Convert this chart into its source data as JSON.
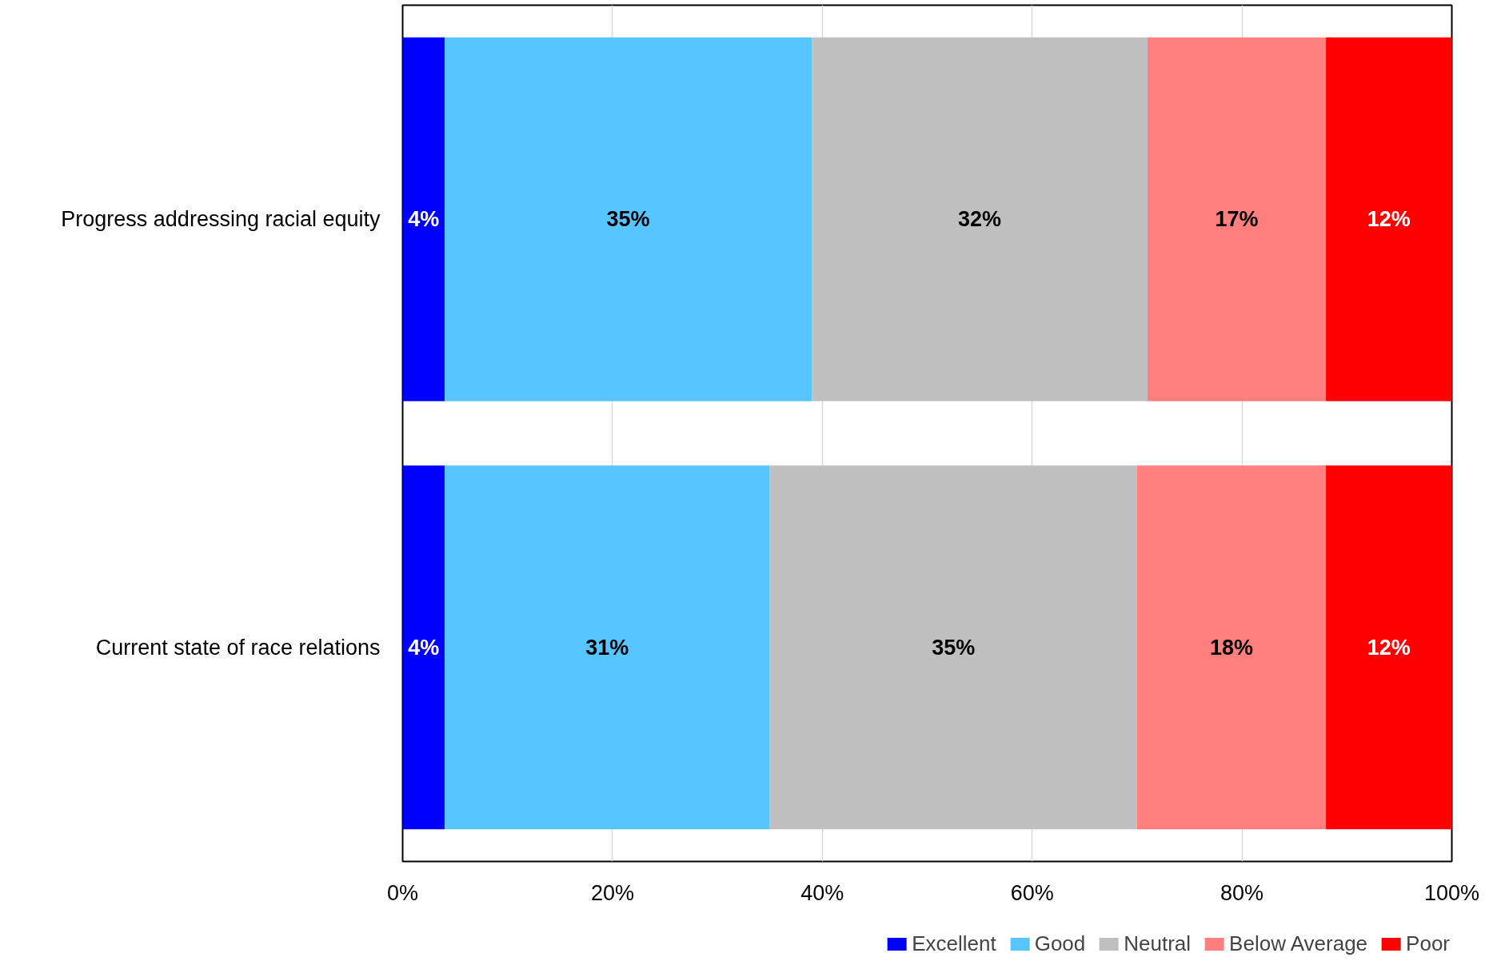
{
  "chart_data": {
    "type": "bar",
    "orientation": "horizontal",
    "stacked": true,
    "categories": [
      "Progress addressing racial equity",
      "Current state of race relations"
    ],
    "series": [
      {
        "name": "Excellent",
        "color": "#0000ff",
        "values": [
          4,
          4
        ],
        "value_labels": [
          "4%",
          "4%"
        ]
      },
      {
        "name": "Good",
        "color": "#57c5ff",
        "values": [
          35,
          31
        ],
        "value_labels": [
          "35%",
          "31%"
        ]
      },
      {
        "name": "Neutral",
        "color": "#bfbfbf",
        "values": [
          32,
          35
        ],
        "value_labels": [
          "32%",
          "35%"
        ]
      },
      {
        "name": "Below Average",
        "color": "#ff7f7f",
        "values": [
          17,
          18
        ],
        "value_labels": [
          "17%",
          "18%"
        ]
      },
      {
        "name": "Poor",
        "color": "#ff0000",
        "values": [
          12,
          12
        ],
        "value_labels": [
          "12%",
          "12%"
        ]
      }
    ],
    "xlim": [
      0,
      100
    ],
    "xticks": [
      {
        "value": 0,
        "label": "0%"
      },
      {
        "value": 20,
        "label": "20%"
      },
      {
        "value": 40,
        "label": "40%"
      },
      {
        "value": 60,
        "label": "60%"
      },
      {
        "value": 80,
        "label": "80%"
      },
      {
        "value": 100,
        "label": "100%"
      }
    ],
    "grid": "x",
    "legend": "bottom right"
  }
}
